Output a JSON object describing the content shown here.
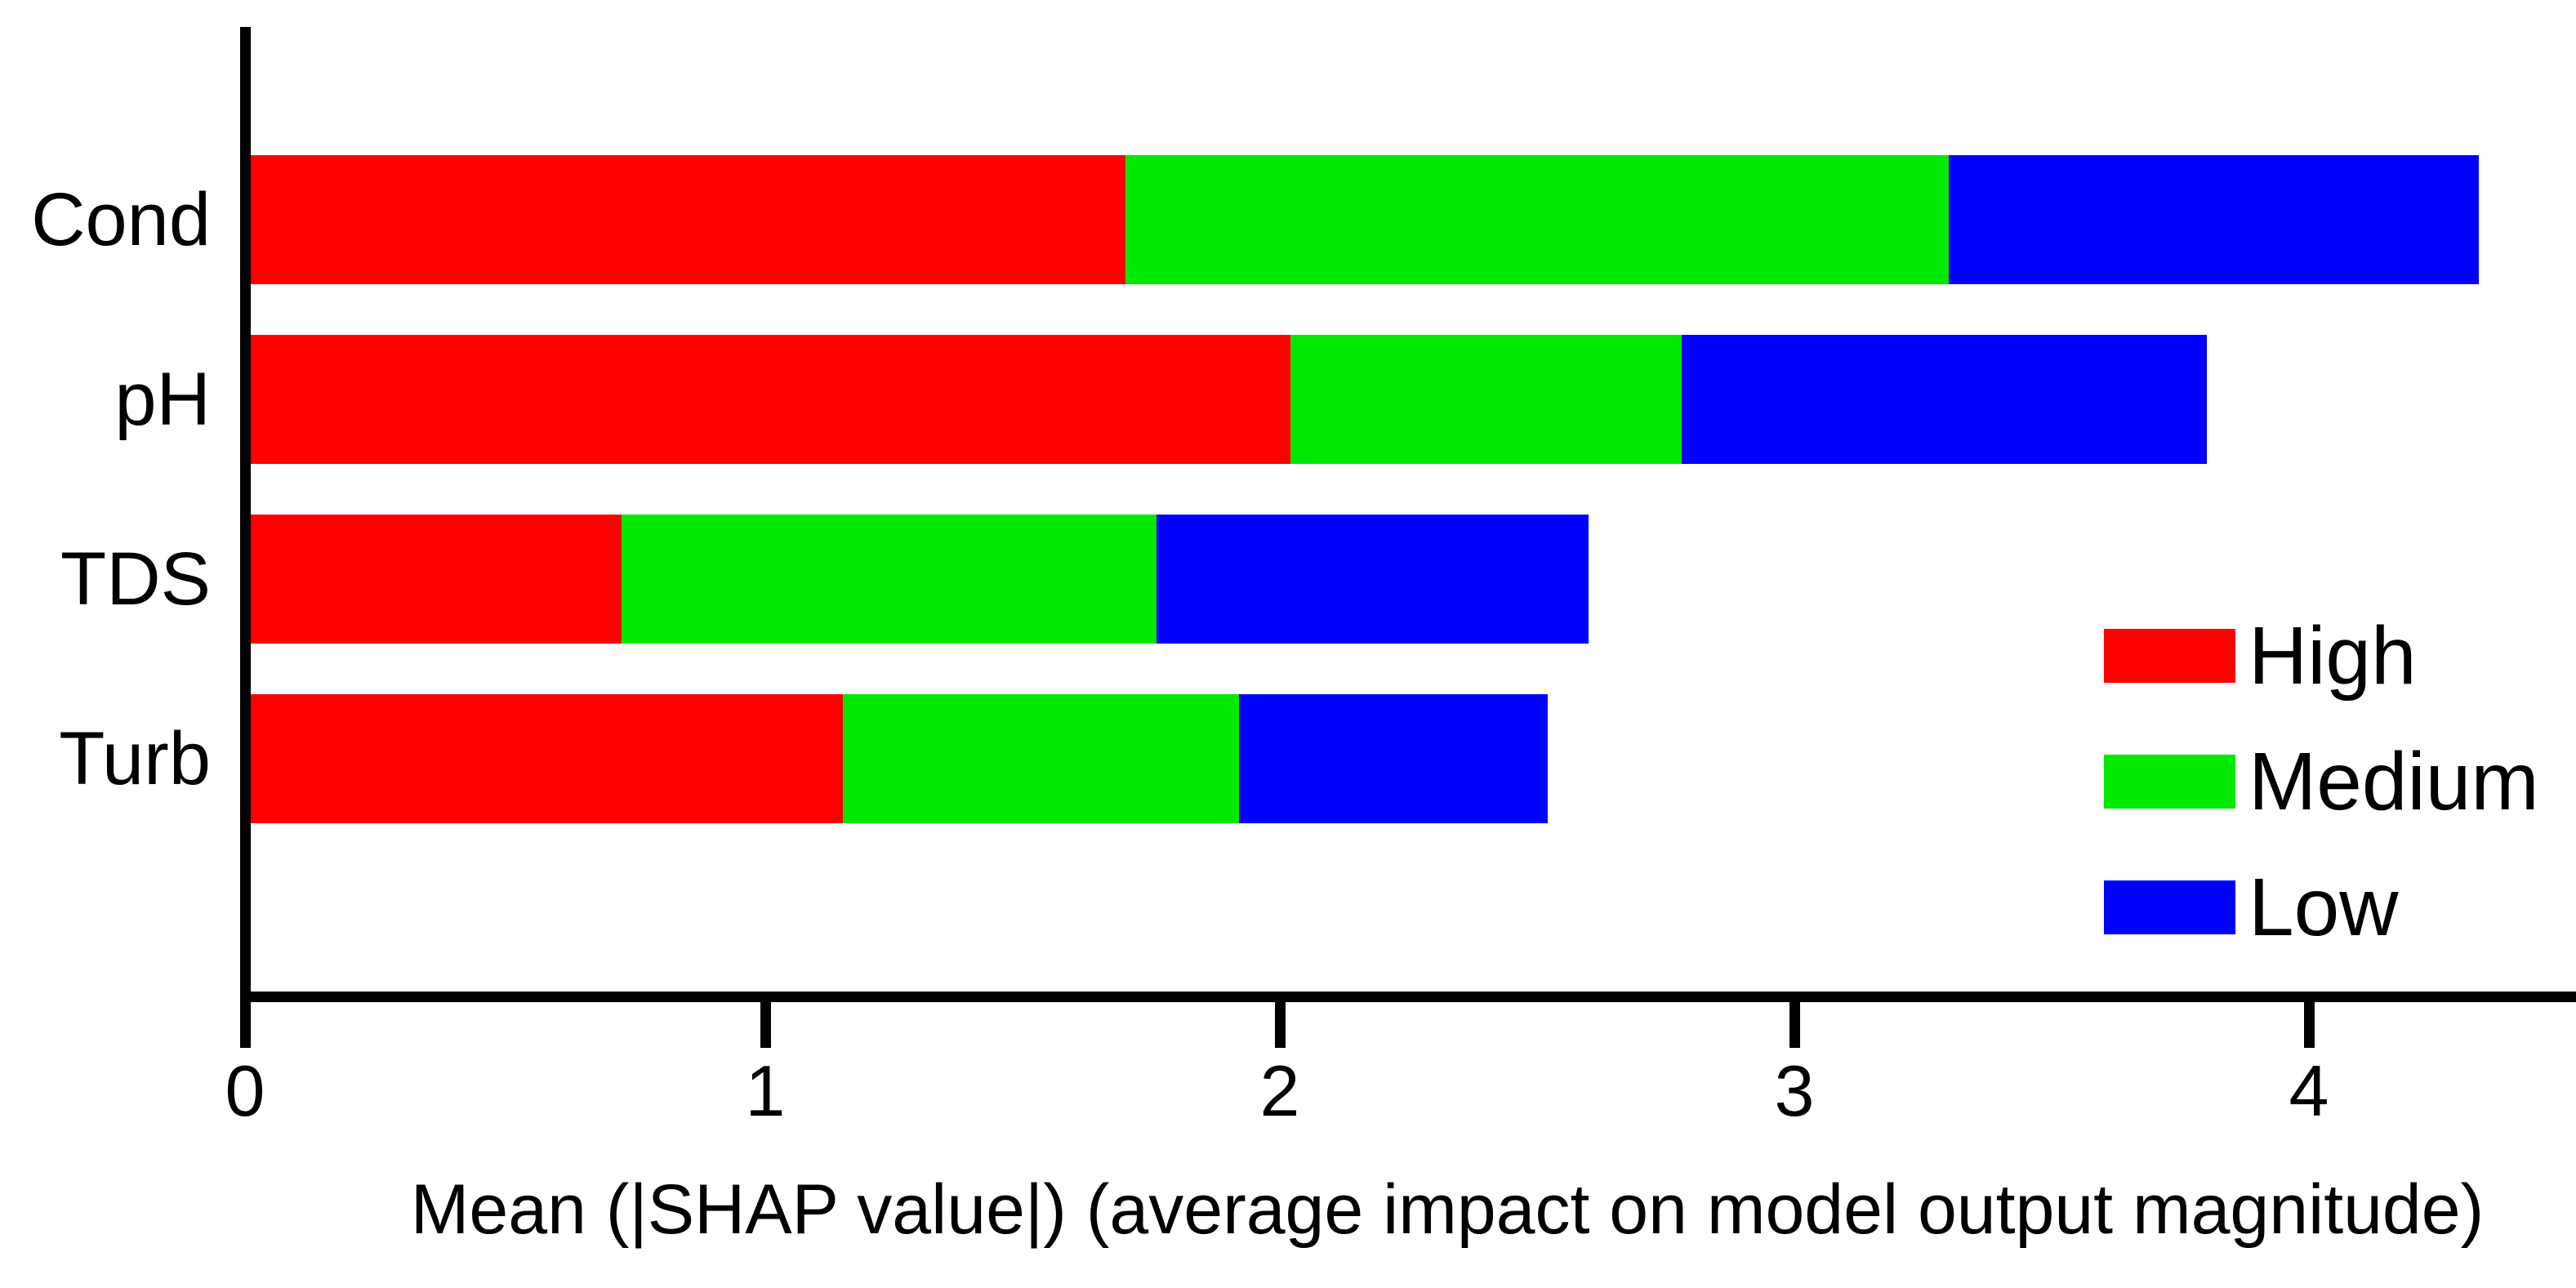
{
  "figure": {
    "background": "#ffffff",
    "text_color": "#000000",
    "axis_color": "#000000"
  },
  "chart_data": {
    "type": "bar",
    "orientation": "horizontal",
    "stacked": true,
    "title": "",
    "xlabel": "Mean (|SHAP value|) (average impact on model output magnitude)",
    "ylabel": "",
    "categories": [
      "Cond",
      "pH",
      "TDS",
      "Turb"
    ],
    "series": [
      {
        "name": "High",
        "color": "#ff0000",
        "values": [
          1.7,
          2.02,
          0.72,
          1.15
        ]
      },
      {
        "name": "Medium",
        "color": "#00e800",
        "values": [
          1.6,
          0.76,
          1.04,
          0.77
        ]
      },
      {
        "name": "Low",
        "color": "#0000ff",
        "values": [
          1.03,
          1.02,
          0.84,
          0.6
        ]
      }
    ],
    "totals": [
      4.33,
      3.8,
      2.6,
      2.52
    ],
    "x_ticks": [
      0,
      1,
      2,
      3,
      4
    ],
    "xlim": [
      0,
      4.52
    ],
    "grid": false,
    "legend": {
      "position": "inside-right",
      "labels": [
        "High",
        "Medium",
        "Low"
      ]
    }
  }
}
